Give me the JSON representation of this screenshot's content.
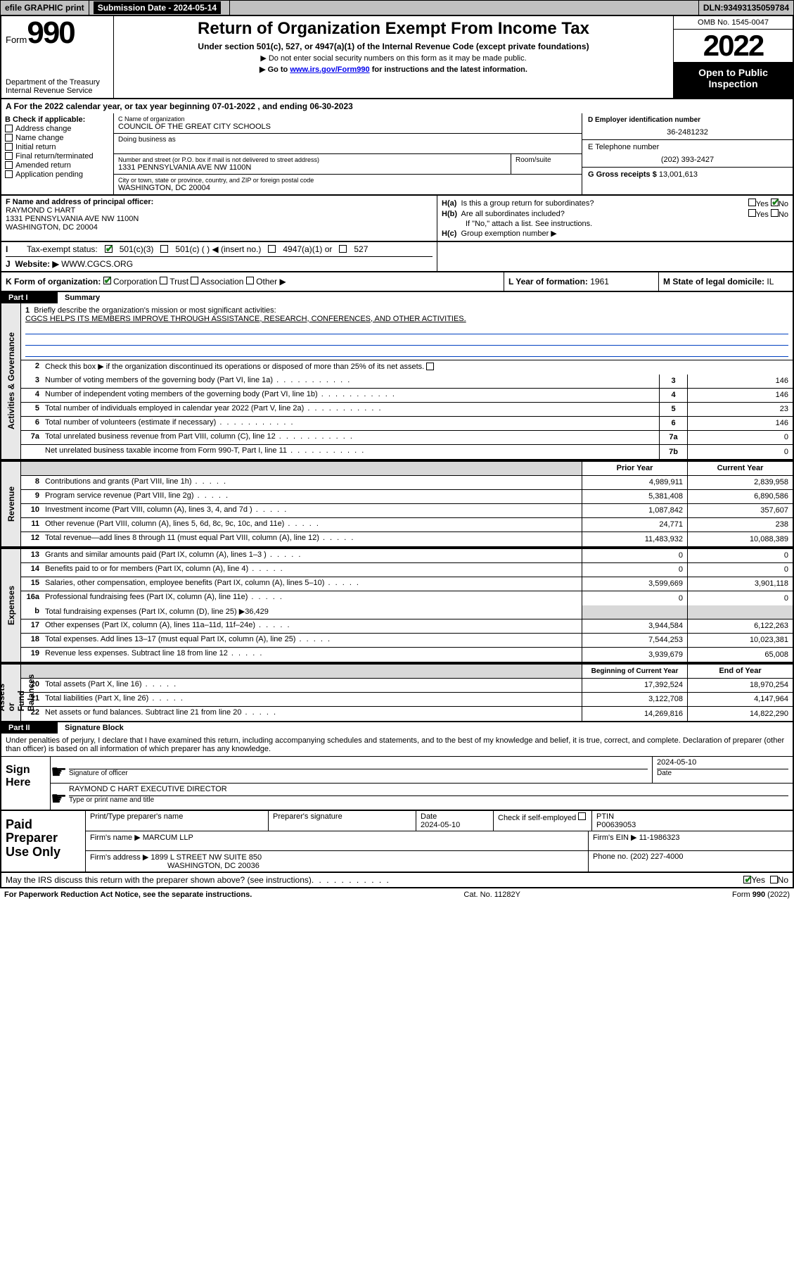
{
  "topbar": {
    "efile": "efile GRAPHIC print",
    "subdate_label": "Submission Date - ",
    "subdate": "2024-05-14",
    "dln_label": "DLN: ",
    "dln": "93493135059784"
  },
  "hdr": {
    "form_word": "Form",
    "form_num": "990",
    "dept": "Department of the Treasury\nInternal Revenue Service",
    "title": "Return of Organization Exempt From Income Tax",
    "sub": "Under section 501(c), 527, or 4947(a)(1) of the Internal Revenue Code (except private foundations)",
    "sub2": "▶ Do not enter social security numbers on this form as it may be made public.",
    "sub3_pre": "▶ Go to ",
    "sub3_link": "www.irs.gov/Form990",
    "sub3_post": " for instructions and the latest information.",
    "omb": "OMB No. 1545-0047",
    "year": "2022",
    "open": "Open to Public Inspection"
  },
  "a_line": {
    "pre": "A For the 2022 calendar year, or tax year beginning ",
    "begin": "07-01-2022",
    "mid": " , and ending ",
    "end": "06-30-2023"
  },
  "b": {
    "hdr": "B Check if applicable:",
    "addr_change": "Address change",
    "name_change": "Name change",
    "initial": "Initial return",
    "final": "Final return/terminated",
    "amended": "Amended return",
    "app_pending": "Application pending"
  },
  "c": {
    "name_lbl": "C Name of organization",
    "name": "COUNCIL OF THE GREAT CITY SCHOOLS",
    "dba_lbl": "Doing business as",
    "street_lbl": "Number and street (or P.O. box if mail is not delivered to street address)",
    "street": "1331 PENNSYLVANIA AVE NW 1100N",
    "suite_lbl": "Room/suite",
    "city_lbl": "City or town, state or province, country, and ZIP or foreign postal code",
    "city": "WASHINGTON, DC  20004"
  },
  "d": {
    "lbl": "D Employer identification number",
    "val": "36-2481232"
  },
  "e": {
    "lbl": "E Telephone number",
    "val": "(202) 393-2427"
  },
  "g": {
    "lbl": "G Gross receipts $ ",
    "val": "13,001,613"
  },
  "f": {
    "lbl": "F Name and address of principal officer:",
    "name": "RAYMOND C HART",
    "addr1": "1331 PENNSYLVANIA AVE NW 1100N",
    "addr2": "WASHINGTON, DC  20004"
  },
  "h": {
    "a_q": "Is this a group return for subordinates?",
    "b_q": "Are all subordinates included?",
    "b_note": "If \"No,\" attach a list. See instructions.",
    "c_lbl": "Group exemption number ▶",
    "yes": "Yes",
    "no": "No"
  },
  "i": {
    "lbl": "Tax-exempt status:",
    "opt1": "501(c)(3)",
    "opt2": "501(c) (    ) ◀ (insert no.)",
    "opt3": "4947(a)(1) or",
    "opt4": "527"
  },
  "j": {
    "lbl": "Website: ▶",
    "val": "WWW.CGCS.ORG"
  },
  "k": {
    "lbl": "K Form of organization:",
    "corp": "Corporation",
    "trust": "Trust",
    "assoc": "Association",
    "other": "Other ▶"
  },
  "l": {
    "lbl": "L Year of formation: ",
    "val": "1961"
  },
  "m": {
    "lbl": "M State of legal domicile: ",
    "val": "IL"
  },
  "part1": {
    "tag": "Part I",
    "title": "Summary"
  },
  "mission": {
    "num": "1",
    "lbl": "Briefly describe the organization's mission or most significant activities:",
    "val": "CGCS HELPS ITS MEMBERS IMPROVE THROUGH ASSISTANCE, RESEARCH, CONFERENCES, AND OTHER ACTIVITIES."
  },
  "line2": {
    "num": "2",
    "txt": "Check this box ▶         if the organization discontinued its operations or disposed of more than 25% of its net assets."
  },
  "gov_rows": [
    {
      "n": "3",
      "t": "Number of voting members of the governing body (Part VI, line 1a)",
      "b": "3",
      "v": "146"
    },
    {
      "n": "4",
      "t": "Number of independent voting members of the governing body (Part VI, line 1b)",
      "b": "4",
      "v": "146"
    },
    {
      "n": "5",
      "t": "Total number of individuals employed in calendar year 2022 (Part V, line 2a)",
      "b": "5",
      "v": "23"
    },
    {
      "n": "6",
      "t": "Total number of volunteers (estimate if necessary)",
      "b": "6",
      "v": "146"
    },
    {
      "n": "7a",
      "t": "Total unrelated business revenue from Part VIII, column (C), line 12",
      "b": "7a",
      "v": "0"
    },
    {
      "n": "",
      "t": "Net unrelated business taxable income from Form 990-T, Part I, line 11",
      "b": "7b",
      "v": "0"
    }
  ],
  "pycy": {
    "prior": "Prior Year",
    "current": "Current Year"
  },
  "rev_rows": [
    {
      "n": "8",
      "t": "Contributions and grants (Part VIII, line 1h)",
      "p": "4,989,911",
      "c": "2,839,958"
    },
    {
      "n": "9",
      "t": "Program service revenue (Part VIII, line 2g)",
      "p": "5,381,408",
      "c": "6,890,586"
    },
    {
      "n": "10",
      "t": "Investment income (Part VIII, column (A), lines 3, 4, and 7d )",
      "p": "1,087,842",
      "c": "357,607"
    },
    {
      "n": "11",
      "t": "Other revenue (Part VIII, column (A), lines 5, 6d, 8c, 9c, 10c, and 11e)",
      "p": "24,771",
      "c": "238"
    },
    {
      "n": "12",
      "t": "Total revenue—add lines 8 through 11 (must equal Part VIII, column (A), line 12)",
      "p": "11,483,932",
      "c": "10,088,389"
    }
  ],
  "exp_rows": [
    {
      "n": "13",
      "t": "Grants and similar amounts paid (Part IX, column (A), lines 1–3 )",
      "p": "0",
      "c": "0"
    },
    {
      "n": "14",
      "t": "Benefits paid to or for members (Part IX, column (A), line 4)",
      "p": "0",
      "c": "0"
    },
    {
      "n": "15",
      "t": "Salaries, other compensation, employee benefits (Part IX, column (A), lines 5–10)",
      "p": "3,599,669",
      "c": "3,901,118"
    },
    {
      "n": "16a",
      "t": "Professional fundraising fees (Part IX, column (A), line 11e)",
      "p": "0",
      "c": "0"
    }
  ],
  "exp_b": {
    "n": "b",
    "t": "Total fundraising expenses (Part IX, column (D), line 25) ▶",
    "v": "36,429"
  },
  "exp_rows2": [
    {
      "n": "17",
      "t": "Other expenses (Part IX, column (A), lines 11a–11d, 11f–24e)",
      "p": "3,944,584",
      "c": "6,122,263"
    },
    {
      "n": "18",
      "t": "Total expenses. Add lines 13–17 (must equal Part IX, column (A), line 25)",
      "p": "7,544,253",
      "c": "10,023,381"
    },
    {
      "n": "19",
      "t": "Revenue less expenses. Subtract line 18 from line 12",
      "p": "3,939,679",
      "c": "65,008"
    }
  ],
  "bycy": {
    "begin": "Beginning of Current Year",
    "end": "End of Year"
  },
  "bal_rows": [
    {
      "n": "20",
      "t": "Total assets (Part X, line 16)",
      "p": "17,392,524",
      "c": "18,970,254"
    },
    {
      "n": "21",
      "t": "Total liabilities (Part X, line 26)",
      "p": "3,122,708",
      "c": "4,147,964"
    },
    {
      "n": "22",
      "t": "Net assets or fund balances. Subtract line 21 from line 20",
      "p": "14,269,816",
      "c": "14,822,290"
    }
  ],
  "vlabels": {
    "gov": "Activities & Governance",
    "rev": "Revenue",
    "exp": "Expenses",
    "bal": "Net Assets or\nFund Balances"
  },
  "part2": {
    "tag": "Part II",
    "title": "Signature Block"
  },
  "decl": "Under penalties of perjury, I declare that I have examined this return, including accompanying schedules and statements, and to the best of my knowledge and belief, it is true, correct, and complete. Declaration of preparer (other than officer) is based on all information of which preparer has any knowledge.",
  "sign": {
    "lbl": "Sign Here",
    "sig_of_officer": "Signature of officer",
    "date": "2024-05-10",
    "date_lbl": "Date",
    "name": "RAYMOND C HART EXECUTIVE DIRECTOR",
    "name_lbl": "Type or print name and title"
  },
  "paid": {
    "lbl": "Paid Preparer Use Only",
    "ptname_lbl": "Print/Type preparer's name",
    "psig_lbl": "Preparer's signature",
    "pdate_lbl": "Date",
    "pdate": "2024-05-10",
    "self_lbl": "Check          if self-employed",
    "ptin_lbl": "PTIN",
    "ptin": "P00639053",
    "firm_name_lbl": "Firm's name    ▶",
    "firm_name": "MARCUM LLP",
    "firm_ein_lbl": "Firm's EIN ▶",
    "firm_ein": "11-1986323",
    "firm_addr_lbl": "Firm's address ▶",
    "firm_addr1": "1899 L STREET NW SUITE 850",
    "firm_addr2": "WASHINGTON, DC  20036",
    "phone_lbl": "Phone no. ",
    "phone": "(202) 227-4000"
  },
  "may": {
    "q": "May the IRS discuss this return with the preparer shown above? (see instructions)",
    "yes": "Yes",
    "no": "No"
  },
  "footer": {
    "left": "For Paperwork Reduction Act Notice, see the separate instructions.",
    "cat": "Cat. No. 11282Y",
    "form": "Form 990 (2022)"
  }
}
